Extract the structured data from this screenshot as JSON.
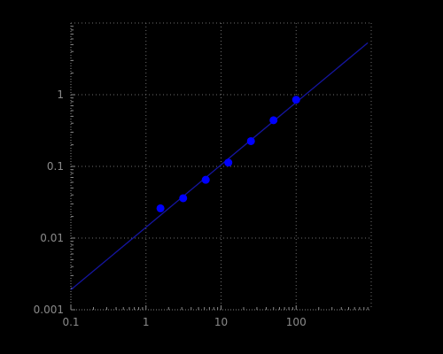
{
  "chart_data": {
    "type": "scatter",
    "title": "",
    "xlabel": "",
    "ylabel": "",
    "x_scale": "log",
    "y_scale": "log",
    "xlim": [
      0.1,
      1000
    ],
    "ylim": [
      0.001,
      10
    ],
    "x_ticks": [
      {
        "value": 0.1,
        "label": "0.1"
      },
      {
        "value": 1,
        "label": "1"
      },
      {
        "value": 10,
        "label": "10"
      },
      {
        "value": 100,
        "label": "100"
      }
    ],
    "y_ticks": [
      {
        "value": 0.001,
        "label": "0.001"
      },
      {
        "value": 0.01,
        "label": "0.01"
      },
      {
        "value": 0.1,
        "label": "0.1"
      },
      {
        "value": 1,
        "label": "1"
      }
    ],
    "grid": true,
    "background_color": "#000000",
    "grid_color": "#6e6e6e",
    "text_color": "#8a8a8a",
    "series": [
      {
        "color": "#0000ff",
        "points": [
          {
            "x": 1.56,
            "y": 0.026
          },
          {
            "x": 3.13,
            "y": 0.036
          },
          {
            "x": 6.25,
            "y": 0.065
          },
          {
            "x": 12.5,
            "y": 0.113
          },
          {
            "x": 25,
            "y": 0.225
          },
          {
            "x": 50,
            "y": 0.44
          },
          {
            "x": 100,
            "y": 0.85
          }
        ]
      }
    ],
    "fit_line": {
      "color": "#1515a0",
      "start": {
        "x": 0.1,
        "y": 0.0019
      },
      "end": {
        "x": 900,
        "y": 5.3
      }
    }
  }
}
